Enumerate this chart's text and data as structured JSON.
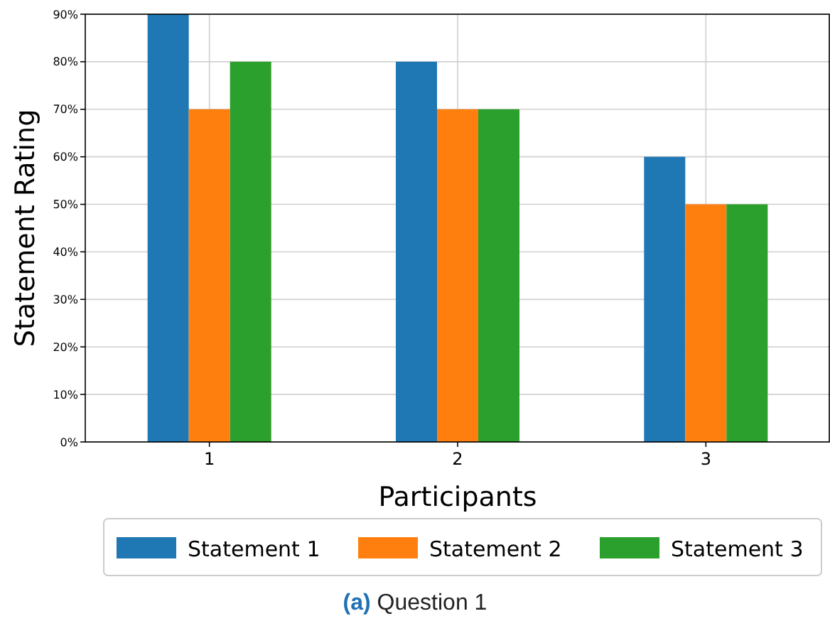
{
  "chart_data": {
    "type": "bar",
    "xlabel": "Participants",
    "ylabel": "Statement Rating",
    "categories": [
      "1",
      "2",
      "3"
    ],
    "series": [
      {
        "name": "Statement 1",
        "color": "#1f77b4",
        "values": [
          90,
          80,
          60
        ]
      },
      {
        "name": "Statement 2",
        "color": "#ff7f0e",
        "values": [
          70,
          70,
          50
        ]
      },
      {
        "name": "Statement 3",
        "color": "#2ca02c",
        "values": [
          80,
          70,
          50
        ]
      }
    ],
    "ylim": [
      0,
      90
    ],
    "yticks": [
      {
        "value": 0,
        "label": "0%"
      },
      {
        "value": 10,
        "label": "10%"
      },
      {
        "value": 20,
        "label": "20%"
      },
      {
        "value": 30,
        "label": "30%"
      },
      {
        "value": 40,
        "label": "40%"
      },
      {
        "value": 50,
        "label": "50%"
      },
      {
        "value": 60,
        "label": "60%"
      },
      {
        "value": 70,
        "label": "70%"
      },
      {
        "value": 80,
        "label": "80%"
      },
      {
        "value": 90,
        "label": "90%"
      }
    ],
    "grid": true,
    "legend": "bottom",
    "annotations": [
      "(a) Question 1"
    ]
  }
}
